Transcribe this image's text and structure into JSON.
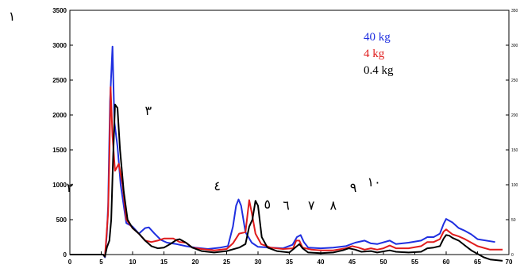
{
  "chart_data": {
    "type": "line",
    "xlim": [
      0,
      70
    ],
    "ylim": [
      0,
      3500
    ],
    "xticks": [
      0,
      5,
      10,
      15,
      20,
      25,
      30,
      35,
      40,
      45,
      50,
      55,
      60,
      65,
      70
    ],
    "yticks": [
      0,
      500,
      1000,
      1500,
      2000,
      2500,
      3000,
      3500
    ],
    "yticks_right": [
      "0",
      "50",
      "100",
      "150",
      "200",
      "250",
      "300",
      "350"
    ],
    "grid": false,
    "legend_placement": "top-right",
    "series": [
      {
        "name": "40 kg",
        "color": "#1f2fe0",
        "points": [
          [
            0,
            0
          ],
          [
            5.3,
            0
          ],
          [
            5.6,
            -40
          ],
          [
            5.9,
            300
          ],
          [
            6.1,
            700
          ],
          [
            6.4,
            2200
          ],
          [
            6.8,
            2980
          ],
          [
            7.1,
            1900
          ],
          [
            7.6,
            1550
          ],
          [
            8.1,
            1000
          ],
          [
            9,
            450
          ],
          [
            10,
            400
          ],
          [
            11,
            300
          ],
          [
            12,
            380
          ],
          [
            12.6,
            390
          ],
          [
            13.5,
            300
          ],
          [
            14.5,
            210
          ],
          [
            15.5,
            170
          ],
          [
            17,
            150
          ],
          [
            18.5,
            120
          ],
          [
            20,
            100
          ],
          [
            22,
            80
          ],
          [
            24,
            100
          ],
          [
            25.2,
            120
          ],
          [
            26,
            400
          ],
          [
            26.5,
            700
          ],
          [
            26.9,
            790
          ],
          [
            27.3,
            700
          ],
          [
            28,
            320
          ],
          [
            29,
            170
          ],
          [
            30,
            110
          ],
          [
            32,
            100
          ],
          [
            34,
            90
          ],
          [
            35.5,
            140
          ],
          [
            36.2,
            250
          ],
          [
            36.8,
            280
          ],
          [
            37.3,
            180
          ],
          [
            38,
            100
          ],
          [
            40,
            90
          ],
          [
            42,
            100
          ],
          [
            44,
            120
          ],
          [
            45.5,
            170
          ],
          [
            47,
            200
          ],
          [
            48,
            160
          ],
          [
            49,
            150
          ],
          [
            51,
            200
          ],
          [
            52,
            150
          ],
          [
            54,
            170
          ],
          [
            56,
            200
          ],
          [
            57,
            250
          ],
          [
            58,
            250
          ],
          [
            59,
            300
          ],
          [
            59.6,
            440
          ],
          [
            60,
            510
          ],
          [
            61,
            460
          ],
          [
            62,
            380
          ],
          [
            63,
            340
          ],
          [
            64,
            290
          ],
          [
            65,
            220
          ],
          [
            67.8,
            180
          ]
        ]
      },
      {
        "name": "4 kg",
        "color": "#e01c1c",
        "points": [
          [
            0,
            0
          ],
          [
            5.3,
            0
          ],
          [
            5.6,
            -30
          ],
          [
            5.9,
            350
          ],
          [
            6.1,
            600
          ],
          [
            6.3,
            1400
          ],
          [
            6.5,
            2400
          ],
          [
            6.8,
            1700
          ],
          [
            7.2,
            1200
          ],
          [
            7.8,
            1300
          ],
          [
            8.4,
            1000
          ],
          [
            9,
            500
          ],
          [
            10,
            380
          ],
          [
            11,
            300
          ],
          [
            12,
            200
          ],
          [
            13,
            180
          ],
          [
            14,
            200
          ],
          [
            15,
            230
          ],
          [
            16.5,
            230
          ],
          [
            17.5,
            180
          ],
          [
            18.5,
            170
          ],
          [
            19.5,
            100
          ],
          [
            21,
            80
          ],
          [
            23,
            60
          ],
          [
            25,
            80
          ],
          [
            26,
            160
          ],
          [
            27,
            300
          ],
          [
            28,
            320
          ],
          [
            28.6,
            780
          ],
          [
            29,
            600
          ],
          [
            29.6,
            300
          ],
          [
            30.5,
            150
          ],
          [
            32,
            100
          ],
          [
            34,
            80
          ],
          [
            35.6,
            90
          ],
          [
            36.1,
            200
          ],
          [
            36.6,
            200
          ],
          [
            37.1,
            100
          ],
          [
            38.5,
            70
          ],
          [
            40,
            60
          ],
          [
            42,
            60
          ],
          [
            44,
            90
          ],
          [
            45,
            120
          ],
          [
            46,
            100
          ],
          [
            47,
            70
          ],
          [
            48,
            90
          ],
          [
            49,
            70
          ],
          [
            50,
            90
          ],
          [
            51,
            130
          ],
          [
            52,
            90
          ],
          [
            54,
            90
          ],
          [
            56,
            120
          ],
          [
            57,
            180
          ],
          [
            58,
            180
          ],
          [
            59,
            220
          ],
          [
            59.6,
            330
          ],
          [
            60,
            360
          ],
          [
            61,
            290
          ],
          [
            62,
            260
          ],
          [
            63,
            220
          ],
          [
            64,
            170
          ],
          [
            65,
            120
          ],
          [
            67,
            70
          ],
          [
            69,
            70
          ]
        ]
      },
      {
        "name": "0.4 kg",
        "color": "#000000",
        "points": [
          [
            0,
            0
          ],
          [
            5.3,
            0
          ],
          [
            5.6,
            -30
          ],
          [
            5.9,
            100
          ],
          [
            6.3,
            200
          ],
          [
            6.6,
            500
          ],
          [
            6.9,
            1400
          ],
          [
            7.2,
            2150
          ],
          [
            7.6,
            2100
          ],
          [
            8,
            1500
          ],
          [
            8.6,
            900
          ],
          [
            9.2,
            500
          ],
          [
            10,
            380
          ],
          [
            11,
            300
          ],
          [
            12,
            200
          ],
          [
            13,
            120
          ],
          [
            14,
            90
          ],
          [
            15,
            100
          ],
          [
            16,
            150
          ],
          [
            17,
            210
          ],
          [
            17.5,
            220
          ],
          [
            18.5,
            170
          ],
          [
            19.5,
            100
          ],
          [
            21,
            50
          ],
          [
            23,
            30
          ],
          [
            25,
            50
          ],
          [
            27,
            100
          ],
          [
            28,
            150
          ],
          [
            28.6,
            400
          ],
          [
            29.1,
            500
          ],
          [
            29.6,
            770
          ],
          [
            30,
            700
          ],
          [
            30.6,
            250
          ],
          [
            31.5,
            100
          ],
          [
            33,
            50
          ],
          [
            35,
            30
          ],
          [
            36.2,
            120
          ],
          [
            36.6,
            150
          ],
          [
            37.1,
            90
          ],
          [
            38,
            30
          ],
          [
            40,
            20
          ],
          [
            42,
            30
          ],
          [
            43.5,
            60
          ],
          [
            44.5,
            90
          ],
          [
            45.5,
            70
          ],
          [
            46.5,
            40
          ],
          [
            48,
            50
          ],
          [
            49,
            30
          ],
          [
            51,
            60
          ],
          [
            52,
            40
          ],
          [
            54,
            30
          ],
          [
            56,
            40
          ],
          [
            57,
            90
          ],
          [
            58,
            100
          ],
          [
            59,
            120
          ],
          [
            59.6,
            230
          ],
          [
            60,
            280
          ],
          [
            60.5,
            270
          ],
          [
            61,
            240
          ],
          [
            62,
            200
          ],
          [
            63,
            130
          ],
          [
            64,
            60
          ],
          [
            65,
            10
          ],
          [
            66,
            -40
          ],
          [
            67,
            -70
          ],
          [
            69,
            -90
          ]
        ]
      }
    ],
    "annotations": [
      {
        "text": "١",
        "x": -1.5,
        "y": 3350
      },
      {
        "text": "٢",
        "x": 0,
        "y": 900
      },
      {
        "text": "٣",
        "x": 12.5,
        "y": 2000
      },
      {
        "text": "٤",
        "x": 23.5,
        "y": 920
      },
      {
        "text": "٥",
        "x": 31.5,
        "y": 660
      },
      {
        "text": "٦",
        "x": 34.5,
        "y": 640
      },
      {
        "text": "٧",
        "x": 38.5,
        "y": 640
      },
      {
        "text": "٨",
        "x": 42,
        "y": 640
      },
      {
        "text": "٩",
        "x": 45.2,
        "y": 900
      },
      {
        "text": "١٠",
        "x": 48.5,
        "y": 980
      }
    ]
  }
}
